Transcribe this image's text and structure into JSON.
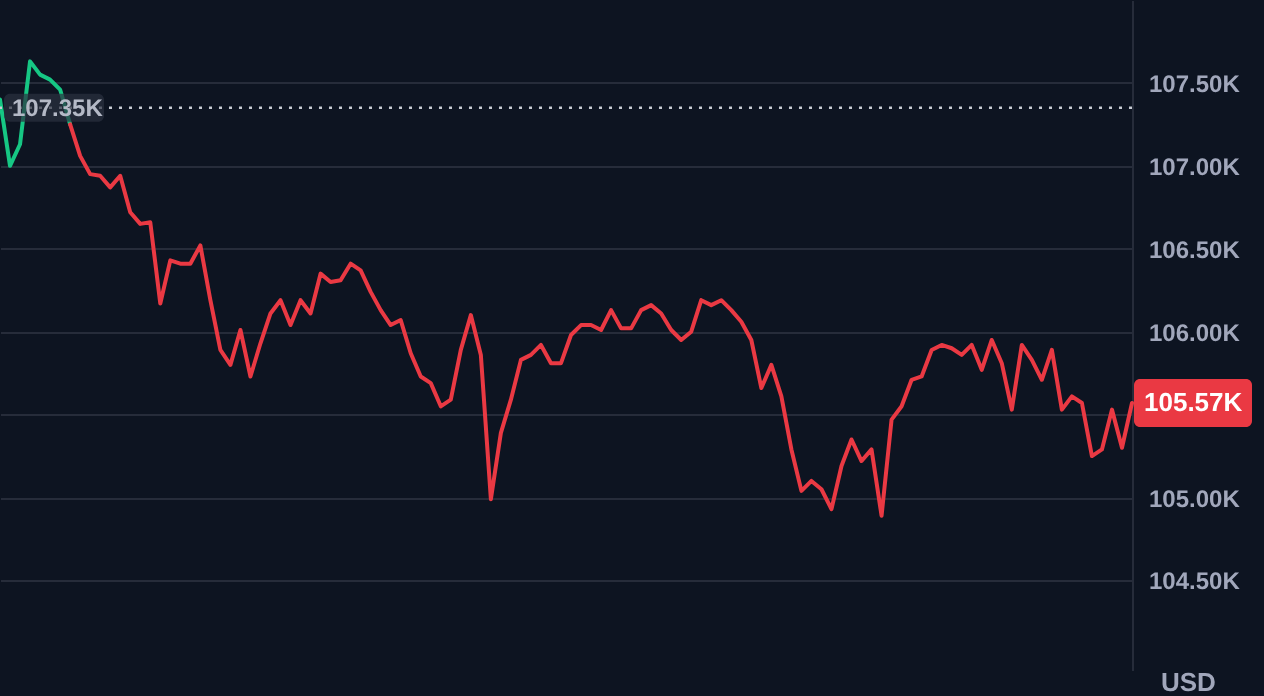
{
  "chart_data": {
    "type": "line",
    "ylabel": "USD",
    "categories": [
      null,
      null,
      null,
      null,
      null,
      null,
      null,
      null,
      null,
      null,
      null,
      null,
      null,
      null,
      null,
      null,
      null,
      null,
      null,
      null,
      null,
      null,
      null,
      null,
      null,
      null,
      null,
      null,
      null,
      null,
      null,
      null,
      null,
      null,
      null,
      null,
      null,
      null,
      null,
      null,
      null,
      null,
      null,
      null,
      null,
      null,
      null,
      null,
      null,
      null,
      null,
      null,
      null,
      null,
      null,
      null,
      null,
      null,
      null,
      null,
      null,
      null,
      null,
      null,
      null,
      null,
      null,
      null,
      null,
      null,
      null,
      null,
      null,
      null,
      null,
      null,
      null,
      null,
      null,
      null,
      null,
      null,
      null,
      null,
      null,
      null,
      null,
      null,
      null,
      null,
      null,
      null,
      null,
      null,
      null,
      null,
      null,
      null,
      null,
      null,
      null,
      null,
      null,
      null,
      null,
      null,
      null,
      null,
      null,
      null,
      null,
      null,
      null,
      null
    ],
    "series": [
      {
        "color": "#16c784",
        "values": [
          107.4,
          107.0,
          107.13,
          107.63,
          107.55,
          107.52,
          107.46,
          107.25,
          null,
          null,
          null,
          null,
          null,
          null,
          null,
          null,
          null,
          null,
          null,
          null,
          null,
          null,
          null,
          null,
          null,
          null,
          null,
          null,
          null,
          null,
          null,
          null,
          null,
          null,
          null,
          null,
          null,
          null,
          null,
          null,
          null,
          null,
          null,
          null,
          null,
          null,
          null,
          null,
          null,
          null,
          null,
          null,
          null,
          null,
          null,
          null,
          null,
          null,
          null,
          null,
          null,
          null,
          null,
          null,
          null,
          null,
          null,
          null,
          null,
          null,
          null,
          null,
          null,
          null,
          null,
          null,
          null,
          null,
          null,
          null,
          null,
          null,
          null,
          null,
          null,
          null,
          null,
          null,
          null,
          null,
          null,
          null,
          null,
          null,
          null,
          null,
          null,
          null,
          null,
          null,
          null,
          null,
          null,
          null,
          null,
          null,
          null,
          null,
          null,
          null,
          null,
          null,
          null,
          null
        ]
      },
      {
        "color": "#ea3943",
        "values": [
          null,
          null,
          null,
          null,
          null,
          null,
          null,
          107.25,
          107.06,
          106.95,
          106.94,
          106.87,
          106.94,
          106.72,
          106.65,
          106.66,
          106.17,
          106.43,
          106.41,
          106.41,
          106.52,
          106.19,
          105.89,
          105.8,
          106.01,
          105.73,
          105.93,
          106.11,
          106.19,
          106.04,
          106.19,
          106.11,
          106.35,
          106.3,
          106.31,
          106.41,
          106.37,
          106.24,
          106.13,
          106.04,
          106.07,
          105.87,
          105.73,
          105.69,
          105.55,
          105.59,
          105.89,
          106.1,
          105.86,
          104.99,
          105.39,
          105.59,
          105.83,
          105.86,
          105.92,
          105.81,
          105.81,
          105.98,
          106.04,
          106.04,
          106.01,
          106.13,
          106.02,
          106.02,
          106.13,
          106.16,
          106.11,
          106.01,
          105.95,
          106.0,
          106.19,
          106.16,
          106.19,
          106.13,
          106.06,
          105.95,
          105.66,
          105.8,
          105.61,
          105.29,
          105.04,
          105.1,
          105.05,
          104.93,
          105.19,
          105.35,
          105.22,
          105.29,
          104.89,
          105.47,
          105.55,
          105.71,
          105.73,
          105.89,
          105.92,
          105.9,
          105.86,
          105.92,
          105.77,
          105.95,
          105.81,
          105.53,
          105.92,
          105.83,
          105.71,
          105.89,
          105.53,
          105.61,
          105.57,
          105.25,
          105.29,
          105.53,
          105.3,
          105.57
        ]
      }
    ],
    "ylim": [
      103.96,
      108.0
    ],
    "yticks": [
      {
        "value": 104.5,
        "label": "104.50K"
      },
      {
        "value": 105.0,
        "label": "105.00K"
      },
      {
        "value": 105.5,
        "label": null
      },
      {
        "value": 106.0,
        "label": "106.00K"
      },
      {
        "value": 106.5,
        "label": "106.50K"
      },
      {
        "value": 107.0,
        "label": "107.00K"
      },
      {
        "value": 107.5,
        "label": "107.50K"
      }
    ],
    "grid": "y",
    "tick_labels": "y",
    "ref_lines": [
      {
        "axis": "y",
        "value": 107.35,
        "label": "107.35K",
        "line_style": "dotted",
        "color": "#c8ccd4"
      }
    ],
    "annotations": [
      "105.57K"
    ]
  }
}
